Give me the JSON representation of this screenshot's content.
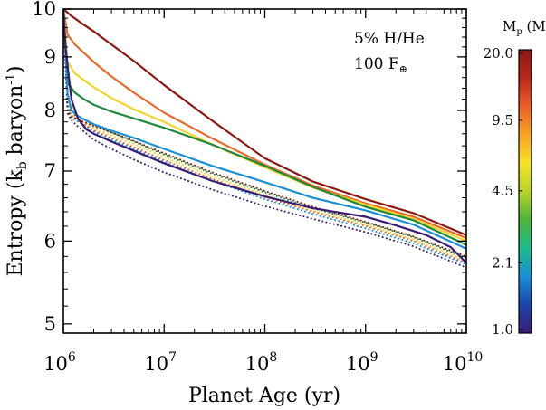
{
  "chart_data": {
    "type": "line",
    "xlabel": "Planet Age (yr)",
    "ylabel": {
      "main": "Entropy (k",
      "sub": "b",
      "mid": " baryon",
      "sup": "-1",
      "end": ")"
    },
    "x_scale": "log",
    "y_scale": "log",
    "xlim": [
      1000000,
      10000000000
    ],
    "ylim": [
      4.9,
      10
    ],
    "x_ticks": [
      {
        "value": 1000000,
        "base": "10",
        "exp": "6"
      },
      {
        "value": 10000000,
        "base": "10",
        "exp": "7"
      },
      {
        "value": 100000000,
        "base": "10",
        "exp": "8"
      },
      {
        "value": 1000000000,
        "base": "10",
        "exp": "9"
      },
      {
        "value": 10000000000,
        "base": "10",
        "exp": "10"
      }
    ],
    "y_ticks": [
      {
        "value": 5,
        "label": "5"
      },
      {
        "value": 6,
        "label": "6"
      },
      {
        "value": 7,
        "label": "7"
      },
      {
        "value": 8,
        "label": "8"
      },
      {
        "value": 9,
        "label": "9"
      },
      {
        "value": 10,
        "label": "10"
      }
    ],
    "annotations": [
      {
        "text": "5% H/He"
      },
      {
        "text": "100 F",
        "symbol": "⊕"
      }
    ],
    "colorbar": {
      "title": {
        "main": "M",
        "sub": "p",
        "rest": " (M",
        "unit_sub": "⊕",
        "end": ")"
      },
      "scale": "log",
      "range": [
        1.0,
        20.0
      ],
      "ticks": [
        {
          "value": 20.0,
          "label": "20.0"
        },
        {
          "value": 9.5,
          "label": "9.5"
        },
        {
          "value": 4.5,
          "label": "4.5"
        },
        {
          "value": 2.1,
          "label": "2.1"
        },
        {
          "value": 1.0,
          "label": "1.0"
        }
      ],
      "stops": [
        "#3a1c75",
        "#1b44a8",
        "#1a8fd6",
        "#1fb98a",
        "#4cb43a",
        "#b8d42a",
        "#f5e12a",
        "#f7a524",
        "#e8602a",
        "#b8281c",
        "#8a1a12"
      ]
    },
    "series": [
      {
        "mass": 20.0,
        "color": "#8b1a12",
        "style": "solid",
        "x": [
          1000000,
          1200000,
          1500000,
          2000000,
          3000000,
          5000000,
          10000000,
          30000000,
          100000000,
          300000000,
          1000000000,
          3000000000,
          10000000000
        ],
        "y": [
          10.0,
          9.85,
          9.7,
          9.52,
          9.25,
          8.92,
          8.46,
          7.82,
          7.2,
          6.84,
          6.58,
          6.38,
          6.08
        ]
      },
      {
        "mass": 9.5,
        "color": "#e86a2a",
        "style": "solid",
        "x": [
          1000000,
          1100000,
          1300000,
          1600000,
          2000000,
          3000000,
          5000000,
          10000000,
          30000000,
          100000000,
          300000000,
          1000000000,
          3000000000,
          10000000000
        ],
        "y": [
          10.0,
          9.45,
          9.25,
          9.08,
          8.9,
          8.62,
          8.32,
          7.96,
          7.52,
          7.1,
          6.78,
          6.52,
          6.33,
          6.04
        ]
      },
      {
        "mass": 6.5,
        "color": "#f2d52a",
        "style": "solid",
        "x": [
          1000000,
          1100000,
          1300000,
          1600000,
          2000000,
          3000000,
          5000000,
          10000000,
          30000000,
          100000000,
          300000000,
          1000000000,
          3000000000,
          10000000000
        ],
        "y": [
          10.0,
          8.9,
          8.68,
          8.55,
          8.42,
          8.22,
          8.02,
          7.8,
          7.42,
          7.06,
          6.75,
          6.5,
          6.3,
          6.0
        ]
      },
      {
        "mass": 3.5,
        "color": "#1f8a3a",
        "style": "solid",
        "x": [
          1000000,
          1100000,
          1300000,
          1600000,
          2000000,
          3000000,
          5000000,
          10000000,
          30000000,
          100000000,
          300000000,
          1000000000,
          3000000000,
          10000000000
        ],
        "y": [
          10.0,
          8.5,
          8.32,
          8.2,
          8.1,
          7.98,
          7.86,
          7.7,
          7.42,
          7.08,
          6.76,
          6.47,
          6.28,
          5.95
        ]
      },
      {
        "mass": 2.1,
        "color": "#1a90d8",
        "style": "solid",
        "x": [
          1000000,
          1100000,
          1200000,
          1400000,
          1700000,
          2000000,
          3000000,
          5000000,
          10000000,
          30000000,
          100000000,
          300000000,
          1000000000,
          3000000000,
          10000000000
        ],
        "y": [
          10.0,
          8.3,
          8.0,
          7.9,
          7.82,
          7.76,
          7.65,
          7.53,
          7.35,
          7.08,
          6.83,
          6.6,
          6.42,
          6.22,
          5.9
        ]
      },
      {
        "mass": 1.0,
        "color": "#3a1c75",
        "style": "solid",
        "x": [
          1000000,
          1050000,
          1200000,
          1400000,
          1700000,
          2000000,
          3000000,
          5000000,
          10000000,
          30000000,
          100000000,
          300000000,
          1000000000,
          2000000000,
          4000000000,
          7000000000,
          10000000000
        ],
        "y": [
          10.0,
          9.2,
          8.2,
          7.85,
          7.67,
          7.6,
          7.47,
          7.32,
          7.12,
          6.85,
          6.62,
          6.45,
          6.33,
          6.21,
          6.08,
          5.92,
          5.72
        ]
      },
      {
        "mass": 3.5,
        "color": "#1f8a3a",
        "style": "dotted",
        "x": [
          1000000,
          1100000,
          1200000,
          1400000,
          1700000,
          2000000,
          3000000,
          5000000,
          10000000,
          30000000,
          100000000,
          300000000,
          1000000000,
          3000000000,
          10000000000
        ],
        "y": [
          10.0,
          8.1,
          7.95,
          7.88,
          7.82,
          7.75,
          7.62,
          7.47,
          7.26,
          6.96,
          6.68,
          6.45,
          6.25,
          6.05,
          5.78
        ]
      },
      {
        "mass": 6.5,
        "color": "#f2d52a",
        "style": "dotted",
        "x": [
          1000000,
          1100000,
          1200000,
          1400000,
          1700000,
          2000000,
          3000000,
          5000000,
          10000000,
          30000000,
          100000000,
          300000000,
          1000000000,
          3000000000,
          10000000000
        ],
        "y": [
          10.0,
          8.05,
          7.92,
          7.84,
          7.77,
          7.7,
          7.57,
          7.43,
          7.22,
          6.92,
          6.64,
          6.42,
          6.22,
          6.02,
          5.75
        ]
      },
      {
        "mass": 2.1,
        "color": "#1a90d8",
        "style": "dotted",
        "x": [
          1000000,
          1100000,
          1200000,
          1400000,
          1700000,
          2000000,
          3000000,
          5000000,
          10000000,
          30000000,
          100000000,
          300000000,
          1000000000,
          3000000000,
          10000000000
        ],
        "y": [
          10.0,
          8.0,
          7.88,
          7.8,
          7.72,
          7.64,
          7.5,
          7.35,
          7.14,
          6.85,
          6.58,
          6.37,
          6.17,
          5.97,
          5.7
        ]
      },
      {
        "mass": 9.5,
        "color": "#e86a2a",
        "style": "dotted",
        "x": [
          1000000,
          1100000,
          1200000,
          1400000,
          1700000,
          2000000,
          3000000,
          5000000,
          10000000,
          30000000,
          100000000,
          300000000,
          1000000000,
          3000000000,
          10000000000
        ],
        "y": [
          10.0,
          8.02,
          7.9,
          7.82,
          7.74,
          7.66,
          7.53,
          7.38,
          7.17,
          6.88,
          6.61,
          6.4,
          6.2,
          6.0,
          5.72
        ]
      },
      {
        "mass": 20.0,
        "color": "#8b1a12",
        "style": "dotted",
        "x": [
          1000000,
          1100000,
          1200000,
          1400000,
          1700000,
          2000000,
          3000000,
          5000000,
          10000000,
          30000000,
          100000000,
          300000000,
          1000000000,
          3000000000,
          10000000000
        ],
        "y": [
          10.0,
          7.98,
          7.9,
          7.84,
          7.78,
          7.73,
          7.62,
          7.48,
          7.28,
          6.98,
          6.7,
          6.47,
          6.26,
          6.06,
          5.8
        ]
      },
      {
        "mass": 1.0,
        "color": "#3a1c75",
        "style": "dotted",
        "x": [
          1000000,
          1100000,
          1200000,
          1400000,
          1700000,
          2000000,
          3000000,
          5000000,
          10000000,
          30000000,
          100000000,
          300000000,
          1000000000,
          3000000000,
          10000000000
        ],
        "y": [
          10.0,
          7.95,
          7.83,
          7.72,
          7.6,
          7.5,
          7.35,
          7.18,
          6.98,
          6.72,
          6.48,
          6.3,
          6.12,
          5.93,
          5.66
        ]
      }
    ]
  }
}
